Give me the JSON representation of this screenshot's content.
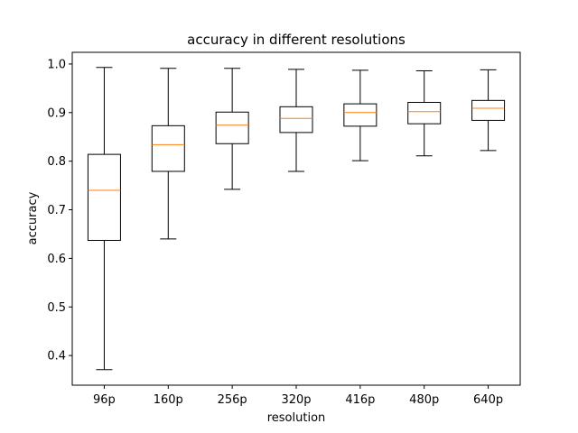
{
  "chart_data": {
    "type": "box",
    "title": "accuracy in different resolutions",
    "xlabel": "resolution",
    "ylabel": "accuracy",
    "categories": [
      "96p",
      "160p",
      "256p",
      "320p",
      "416p",
      "480p",
      "640p"
    ],
    "boxes": [
      {
        "whisker_low": 0.371,
        "q1": 0.637,
        "median": 0.74,
        "q3": 0.814,
        "whisker_high": 0.993
      },
      {
        "whisker_low": 0.64,
        "q1": 0.779,
        "median": 0.834,
        "q3": 0.873,
        "whisker_high": 0.991
      },
      {
        "whisker_low": 0.742,
        "q1": 0.836,
        "median": 0.874,
        "q3": 0.901,
        "whisker_high": 0.991
      },
      {
        "whisker_low": 0.779,
        "q1": 0.859,
        "median": 0.888,
        "q3": 0.912,
        "whisker_high": 0.989
      },
      {
        "whisker_low": 0.801,
        "q1": 0.872,
        "median": 0.9,
        "q3": 0.918,
        "whisker_high": 0.987
      },
      {
        "whisker_low": 0.811,
        "q1": 0.877,
        "median": 0.902,
        "q3": 0.921,
        "whisker_high": 0.986
      },
      {
        "whisker_low": 0.822,
        "q1": 0.884,
        "median": 0.909,
        "q3": 0.925,
        "whisker_high": 0.988
      }
    ],
    "yticks": [
      "0.4",
      "0.5",
      "0.6",
      "0.7",
      "0.8",
      "0.9",
      "1.0"
    ],
    "ylim": [
      0.339,
      1.024
    ],
    "grid": false,
    "legend": "none",
    "colors": {
      "box": "#000000",
      "median": "#ff7f0e",
      "whisker": "#000000"
    }
  }
}
